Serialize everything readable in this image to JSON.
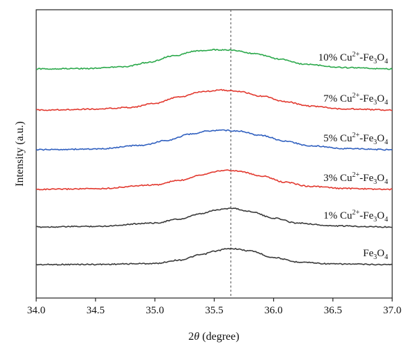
{
  "chart_data": {
    "type": "line",
    "xlabel_prefix": "2",
    "xlabel_symbol": "θ",
    "xlabel_suffix": " (degree)",
    "ylabel": "Intensity (a.u.)",
    "xlim": [
      34.0,
      37.0
    ],
    "x_ticks": [
      "34.0",
      "34.5",
      "35.0",
      "35.5",
      "36.0",
      "36.5",
      "37.0"
    ],
    "y_ticks": [],
    "reference_line_x": 35.64,
    "colors": {
      "black": "#3a3a3a",
      "red": "#e2382e",
      "blue": "#2f5fbf",
      "green": "#2aa84a"
    },
    "series": [
      {
        "name": "Fe3O4",
        "label": {
          "pre": "Fe",
          "sub1": "3",
          "mid": "O",
          "sub2": "4",
          "sup": ""
        },
        "color": "#3a3a3a",
        "x": [
          34.0,
          34.5,
          35.0,
          35.2,
          35.4,
          35.5,
          35.6,
          35.65,
          35.8,
          36.0,
          36.2,
          36.5,
          37.0
        ],
        "y": [
          0.0,
          0.01,
          0.05,
          0.2,
          0.45,
          0.6,
          0.7,
          0.72,
          0.62,
          0.32,
          0.12,
          0.03,
          0.0
        ]
      },
      {
        "name": "1% Cu2+-Fe3O4",
        "label": {
          "pre": "1% Cu",
          "sup": "2+",
          "dash": "-Fe",
          "sub1": "3",
          "mid": "O",
          "sub2": "4"
        },
        "color": "#3a3a3a",
        "x": [
          34.0,
          34.5,
          35.0,
          35.2,
          35.4,
          35.5,
          35.6,
          35.65,
          35.8,
          36.0,
          36.2,
          36.5,
          37.0
        ],
        "y": [
          0.0,
          0.03,
          0.18,
          0.35,
          0.6,
          0.75,
          0.83,
          0.84,
          0.7,
          0.4,
          0.18,
          0.05,
          0.0
        ]
      },
      {
        "name": "3% Cu2+-Fe3O4",
        "label": {
          "pre": "3% Cu",
          "sup": "2+",
          "dash": "-Fe",
          "sub1": "3",
          "mid": "O",
          "sub2": "4"
        },
        "color": "#e2382e",
        "x": [
          34.0,
          34.5,
          35.0,
          35.2,
          35.4,
          35.5,
          35.6,
          35.7,
          35.9,
          36.1,
          36.3,
          36.6,
          37.0
        ],
        "y": [
          0.0,
          0.03,
          0.2,
          0.4,
          0.66,
          0.8,
          0.86,
          0.82,
          0.6,
          0.32,
          0.14,
          0.04,
          0.0
        ]
      },
      {
        "name": "5% Cu2+-Fe3O4",
        "label": {
          "pre": "5% Cu",
          "sup": "2+",
          "dash": "-Fe",
          "sub1": "3",
          "mid": "O",
          "sub2": "4"
        },
        "color": "#2f5fbf",
        "x": [
          34.0,
          34.5,
          34.9,
          35.1,
          35.3,
          35.45,
          35.55,
          35.7,
          35.9,
          36.1,
          36.3,
          36.6,
          37.0
        ],
        "y": [
          0.0,
          0.03,
          0.2,
          0.42,
          0.7,
          0.84,
          0.88,
          0.84,
          0.64,
          0.38,
          0.18,
          0.05,
          0.0
        ]
      },
      {
        "name": "7% Cu2+-Fe3O4",
        "label": {
          "pre": "7% Cu",
          "sup": "2+",
          "dash": "-Fe",
          "sub1": "3",
          "mid": "O",
          "sub2": "4"
        },
        "color": "#e2382e",
        "x": [
          34.0,
          34.5,
          34.8,
          35.0,
          35.2,
          35.4,
          35.55,
          35.7,
          35.9,
          36.1,
          36.3,
          36.6,
          37.0
        ],
        "y": [
          0.0,
          0.04,
          0.12,
          0.3,
          0.58,
          0.82,
          0.9,
          0.84,
          0.62,
          0.38,
          0.18,
          0.05,
          0.0
        ]
      },
      {
        "name": "10% Cu2+-Fe3O4",
        "label": {
          "pre": "10% Cu",
          "sup": "2+",
          "dash": "-Fe",
          "sub1": "3",
          "mid": "O",
          "sub2": "4"
        },
        "color": "#2aa84a",
        "x": [
          34.0,
          34.4,
          34.75,
          34.95,
          35.15,
          35.35,
          35.5,
          35.65,
          35.85,
          36.05,
          36.25,
          36.6,
          37.0
        ],
        "y": [
          0.0,
          0.02,
          0.1,
          0.3,
          0.58,
          0.8,
          0.86,
          0.84,
          0.68,
          0.44,
          0.22,
          0.06,
          0.0
        ]
      }
    ]
  }
}
